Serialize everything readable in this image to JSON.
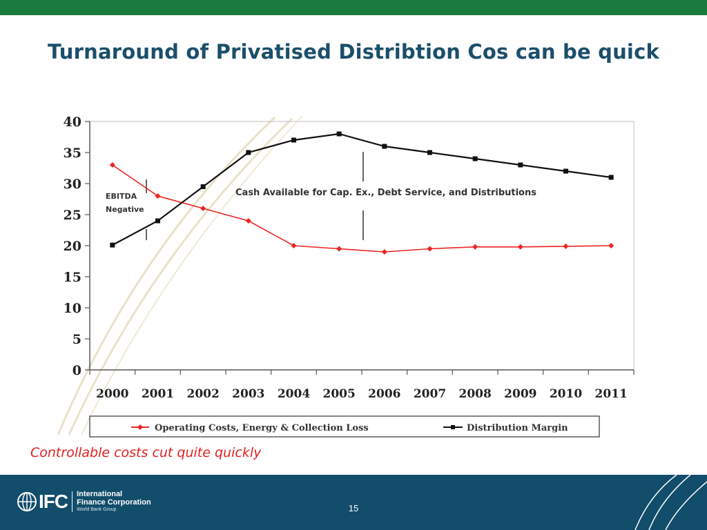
{
  "slide": {
    "title": "Turnaround of Privatised Distribtion Cos can be quick",
    "subtitle": "Controllable costs cut quite quickly",
    "page_number": "15",
    "colors": {
      "top_bar": "#1b7a3d",
      "title": "#1b4f6b",
      "subtitle": "#e02020",
      "footer": "#124d6b"
    }
  },
  "logo": {
    "mark": "IFC",
    "line1": "International",
    "line2": "Finance Corporation",
    "line3": "World Bank Group",
    "icon": "globe-icon"
  },
  "chart_data": {
    "type": "line",
    "categories": [
      "2000",
      "2001",
      "2002",
      "2003",
      "2004",
      "2005",
      "2006",
      "2007",
      "2008",
      "2009",
      "2010",
      "2011"
    ],
    "yticks": [
      "0",
      "5",
      "10",
      "15",
      "20",
      "25",
      "30",
      "35",
      "40"
    ],
    "ylim": [
      0,
      40
    ],
    "series": [
      {
        "name": "Operating Costs, Energy & Collection Loss",
        "color": "#ee2222",
        "marker": "diamond",
        "values": [
          33,
          28,
          26,
          24,
          20,
          19.5,
          19,
          19.5,
          19.8,
          19.8,
          19.9,
          20
        ]
      },
      {
        "name": "Distribution Margin",
        "color": "#111111",
        "marker": "square",
        "values": [
          20.1,
          24,
          29.5,
          35,
          37,
          38,
          36,
          35,
          34,
          33,
          32,
          31
        ]
      }
    ],
    "annotations": {
      "ebitda_line1": "EBITDA",
      "ebitda_line2": "Negative",
      "cash": "Cash Available for Cap. Ex., Debt Service, and Distributions"
    },
    "legend_position": "bottom",
    "grid": false
  }
}
